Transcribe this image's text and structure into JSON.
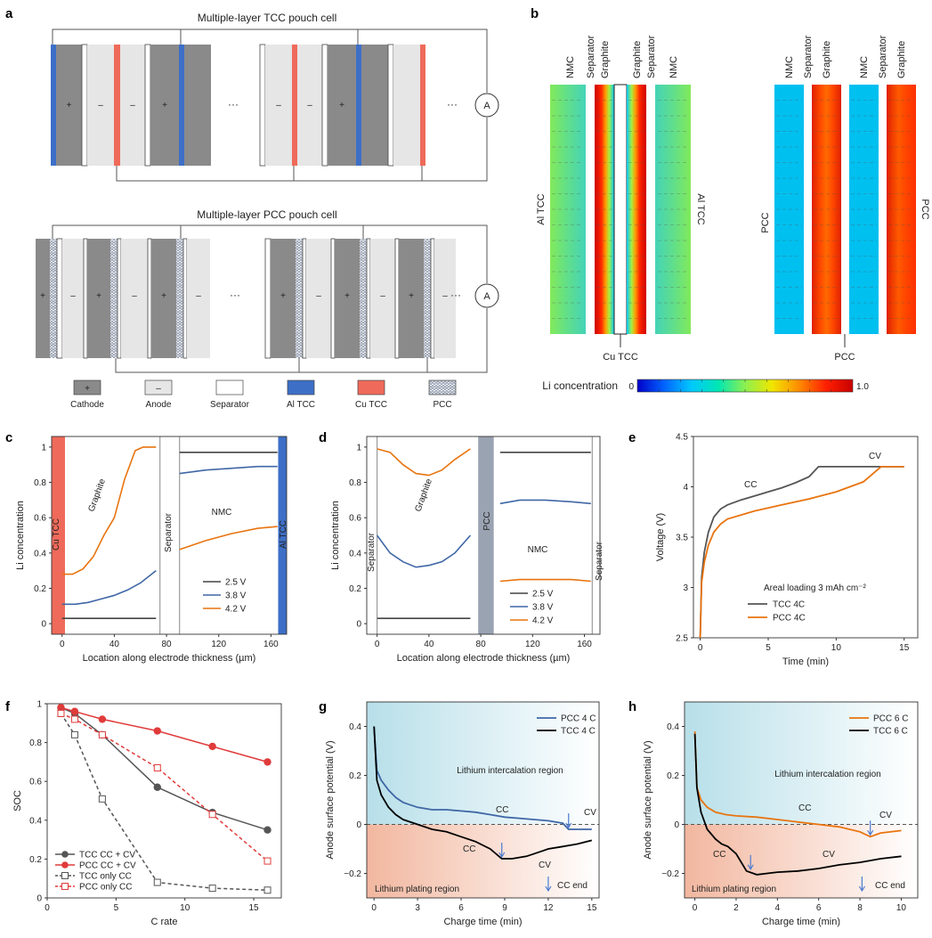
{
  "colors": {
    "cathode": "#8a8a8a",
    "anode": "#e6e6e6",
    "separator": "#ffffff",
    "al_tcc": "#3d6fc7",
    "cu_tcc": "#ef6a5a",
    "pcc_pattern": "#a9b2c4",
    "s25": "#444444",
    "s38": "#3f67a6",
    "s42": "#e8740f",
    "tcc_line": "#555555",
    "pcc_line": "#e8740f",
    "red": "#e03b3b",
    "pcc_bar": "#9aa3b2",
    "blue_g": "#3f67a6",
    "cmap": [
      "#0000c8",
      "#0064ff",
      "#00c8ff",
      "#00e6b4",
      "#8cf050",
      "#f0e600",
      "#ff8c00",
      "#ff2000",
      "#c80000"
    ]
  },
  "panel_labels": {
    "a": "a",
    "b": "b",
    "c": "c",
    "d": "d",
    "e": "e",
    "f": "f",
    "g": "g",
    "h": "h"
  },
  "panel_a": {
    "title_tcc": "Multiple-layer TCC pouch cell",
    "title_pcc": "Multiple-layer PCC pouch cell",
    "ammeter": "A",
    "ellipsis": "···",
    "plus": "+",
    "minus": "–",
    "legend": [
      {
        "key": "cathode",
        "label": "Cathode",
        "sym": "+"
      },
      {
        "key": "anode",
        "label": "Anode",
        "sym": "–"
      },
      {
        "key": "separator",
        "label": "Separator",
        "sym": ""
      },
      {
        "key": "al_tcc",
        "label": "Al TCC",
        "sym": ""
      },
      {
        "key": "cu_tcc",
        "label": "Cu TCC",
        "sym": ""
      },
      {
        "key": "pcc",
        "label": "PCC",
        "sym": ""
      }
    ]
  },
  "panel_b": {
    "tcc_layers": [
      "NMC",
      "Separator",
      "Graphite",
      "Graphite",
      "Separator",
      "NMC"
    ],
    "pcc_layers": [
      "NMC",
      "Separator",
      "Graphite",
      "NMC",
      "Separator",
      "Graphite"
    ],
    "al_tcc_left": "Al TCC",
    "al_tcc_right": "Al TCC",
    "cu_tcc": "Cu TCC",
    "pcc_left": "PCC",
    "pcc_right": "PCC",
    "pcc_bottom": "PCC",
    "colorbar_label": "Li concentration",
    "colorbar_min": "0",
    "colorbar_max": "1.0"
  },
  "chart_data": [
    {
      "id": "c",
      "type": "line",
      "xlabel": "Location along electrode thickness (µm)",
      "ylabel": "Li concentration",
      "xlim": [
        -8,
        172
      ],
      "ylim": [
        -0.06,
        1.06
      ],
      "xticks": [
        0,
        40,
        80,
        120,
        160
      ],
      "yticks": [
        0,
        0.2,
        0.4,
        0.6,
        0.8,
        1.0
      ],
      "region_labels": {
        "left_bar": "Cu TCC",
        "graphite": "Graphite",
        "separator": "Separator",
        "nmc": "NMC",
        "right_bar": "Al TCC"
      },
      "separator_range": [
        75,
        90
      ],
      "legend": [
        "2.5 V",
        "3.8 V",
        "4.2 V"
      ],
      "series": [
        {
          "name": "2.5 V",
          "color": "s25",
          "x": [
            0,
            72
          ],
          "y": [
            0.03,
            0.03
          ]
        },
        {
          "name": "2.5 V",
          "color": "s25",
          "x": [
            90,
            165
          ],
          "y": [
            0.97,
            0.97
          ]
        },
        {
          "name": "3.8 V",
          "color": "s38",
          "x": [
            0,
            10,
            20,
            30,
            40,
            50,
            60,
            72
          ],
          "y": [
            0.11,
            0.11,
            0.12,
            0.14,
            0.16,
            0.19,
            0.23,
            0.3
          ]
        },
        {
          "name": "3.8 V",
          "color": "s38",
          "x": [
            90,
            110,
            130,
            150,
            165
          ],
          "y": [
            0.85,
            0.87,
            0.88,
            0.89,
            0.89
          ]
        },
        {
          "name": "4.2 V",
          "color": "s42",
          "x": [
            0,
            8,
            16,
            24,
            32,
            40,
            48,
            56,
            62,
            68,
            72
          ],
          "y": [
            0.28,
            0.28,
            0.31,
            0.38,
            0.5,
            0.6,
            0.82,
            0.98,
            1.0,
            1.0,
            1.0
          ]
        },
        {
          "name": "4.2 V",
          "color": "s42",
          "x": [
            90,
            110,
            130,
            150,
            165
          ],
          "y": [
            0.42,
            0.47,
            0.51,
            0.54,
            0.55
          ]
        }
      ]
    },
    {
      "id": "d",
      "type": "line",
      "xlabel": "Location along electrode thickness (µm)",
      "ylabel": "Li concentration",
      "xlim": [
        -8,
        172
      ],
      "ylim": [
        -0.06,
        1.06
      ],
      "xticks": [
        0,
        40,
        80,
        120,
        160
      ],
      "yticks": [
        0,
        0.2,
        0.4,
        0.6,
        0.8,
        1.0
      ],
      "region_labels": {
        "left_sep": "Separator",
        "graphite": "Graphite",
        "pcc": "PCC",
        "nmc": "NMC",
        "right_sep": "Separator"
      },
      "pcc_range": [
        78,
        90
      ],
      "legend": [
        "2.5 V",
        "3.8 V",
        "4.2 V"
      ],
      "series": [
        {
          "name": "2.5 V",
          "color": "s25",
          "x": [
            0,
            72
          ],
          "y": [
            0.03,
            0.03
          ]
        },
        {
          "name": "2.5 V",
          "color": "s25",
          "x": [
            95,
            165
          ],
          "y": [
            0.97,
            0.97
          ]
        },
        {
          "name": "3.8 V",
          "color": "s38",
          "x": [
            0,
            10,
            20,
            30,
            40,
            50,
            60,
            72
          ],
          "y": [
            0.5,
            0.4,
            0.35,
            0.32,
            0.33,
            0.35,
            0.4,
            0.5
          ]
        },
        {
          "name": "3.8 V",
          "color": "s38",
          "x": [
            95,
            110,
            130,
            150,
            165
          ],
          "y": [
            0.68,
            0.7,
            0.7,
            0.69,
            0.68
          ]
        },
        {
          "name": "4.2 V",
          "color": "s42",
          "x": [
            0,
            10,
            20,
            30,
            40,
            50,
            60,
            72
          ],
          "y": [
            0.99,
            0.97,
            0.9,
            0.85,
            0.84,
            0.87,
            0.93,
            0.99
          ]
        },
        {
          "name": "4.2 V",
          "color": "s42",
          "x": [
            95,
            110,
            130,
            150,
            165
          ],
          "y": [
            0.24,
            0.25,
            0.25,
            0.25,
            0.24
          ]
        }
      ]
    },
    {
      "id": "e",
      "type": "line",
      "xlabel": "Time (min)",
      "ylabel": "Voltage (V)",
      "xlim": [
        -0.5,
        16
      ],
      "ylim": [
        2.5,
        4.5
      ],
      "xticks": [
        0,
        5,
        10,
        15
      ],
      "yticks": [
        2.5,
        3.0,
        3.5,
        4.0,
        4.5
      ],
      "annotations": {
        "cc": "CC",
        "cv": "CV",
        "note": "Areal loading 3 mAh cm⁻²"
      },
      "legend": [
        "TCC 4C",
        "PCC 4C"
      ],
      "series": [
        {
          "name": "TCC 4C",
          "color": "tcc_line",
          "x": [
            0,
            0.1,
            0.3,
            0.6,
            1,
            1.5,
            2,
            3,
            4,
            5,
            6,
            7,
            8,
            8.7,
            10,
            12,
            14,
            15
          ],
          "y": [
            2.5,
            3.1,
            3.35,
            3.55,
            3.7,
            3.78,
            3.82,
            3.87,
            3.91,
            3.95,
            3.99,
            4.04,
            4.1,
            4.2,
            4.2,
            4.2,
            4.2,
            4.2
          ]
        },
        {
          "name": "PCC 4C",
          "color": "pcc_line",
          "x": [
            0,
            0.1,
            0.3,
            0.6,
            1,
            1.5,
            2,
            3,
            4,
            6,
            8,
            10,
            12,
            13.3,
            14,
            15
          ],
          "y": [
            2.5,
            3.05,
            3.25,
            3.42,
            3.55,
            3.63,
            3.68,
            3.72,
            3.76,
            3.82,
            3.88,
            3.95,
            4.05,
            4.2,
            4.2,
            4.2
          ]
        }
      ]
    },
    {
      "id": "f",
      "type": "line",
      "xlabel": "C rate",
      "ylabel": "SOC",
      "xlim": [
        0,
        17
      ],
      "ylim": [
        0,
        1.0
      ],
      "xticks": [
        0,
        5,
        10,
        15
      ],
      "yticks": [
        0,
        0.2,
        0.4,
        0.6,
        0.8,
        1.0
      ],
      "legend": [
        "TCC CC + CV",
        "PCC CC + CV",
        "TCC only CC",
        "PCC only CC"
      ],
      "series": [
        {
          "name": "TCC CC + CV",
          "color": "tcc_line",
          "dash": false,
          "marker": "circle",
          "x": [
            1,
            2,
            4,
            8,
            12,
            16
          ],
          "y": [
            0.98,
            0.95,
            0.84,
            0.57,
            0.44,
            0.35
          ]
        },
        {
          "name": "PCC CC + CV",
          "color": "red",
          "dash": false,
          "marker": "circle",
          "x": [
            1,
            2,
            4,
            8,
            12,
            16
          ],
          "y": [
            0.98,
            0.96,
            0.92,
            0.86,
            0.78,
            0.7
          ]
        },
        {
          "name": "TCC only CC",
          "color": "tcc_line",
          "dash": true,
          "marker": "square",
          "x": [
            1,
            2,
            4,
            8,
            12,
            16
          ],
          "y": [
            0.95,
            0.84,
            0.51,
            0.08,
            0.05,
            0.04
          ]
        },
        {
          "name": "PCC only CC",
          "color": "red",
          "dash": true,
          "marker": "square",
          "x": [
            1,
            2,
            4,
            8,
            12,
            16
          ],
          "y": [
            0.95,
            0.92,
            0.84,
            0.67,
            0.43,
            0.19
          ]
        }
      ]
    },
    {
      "id": "g",
      "type": "line",
      "xlabel": "Charge time (min)",
      "ylabel": "Anode surface potential (V)",
      "xlim": [
        -0.5,
        15.5
      ],
      "ylim": [
        -0.3,
        0.5
      ],
      "xticks": [
        0,
        3,
        6,
        9,
        12,
        15
      ],
      "yticks": [
        -0.2,
        0,
        0.2,
        0.4
      ],
      "region_labels": {
        "upper": "Lithium intercalation region",
        "lower": "Lithium plating region"
      },
      "annotations": {
        "cc_blue": "CC",
        "cc_black": "CC",
        "cv_blue": "CV",
        "cv_black": "CV",
        "cc_end": "CC end"
      },
      "legend": [
        "PCC 4 C",
        "TCC 4 C"
      ],
      "series": [
        {
          "name": "PCC 4 C",
          "color": "blue_g",
          "x": [
            0,
            0.2,
            0.5,
            1,
            1.5,
            2,
            3,
            4,
            5,
            6,
            7,
            8,
            9,
            10,
            11,
            12,
            13,
            13.4,
            14,
            15
          ],
          "y": [
            0.4,
            0.22,
            0.18,
            0.14,
            0.11,
            0.09,
            0.07,
            0.06,
            0.06,
            0.055,
            0.05,
            0.04,
            0.03,
            0.025,
            0.02,
            0.015,
            0.005,
            -0.02,
            -0.02,
            -0.02
          ]
        },
        {
          "name": "TCC 4 C",
          "color": "black",
          "x": [
            0,
            0.2,
            0.5,
            1,
            1.5,
            2,
            3,
            4,
            5,
            6,
            7,
            8,
            8.8,
            9.5,
            10.5,
            11.5,
            12,
            13,
            14,
            15
          ],
          "y": [
            0.4,
            0.18,
            0.12,
            0.07,
            0.04,
            0.02,
            0.0,
            -0.02,
            -0.03,
            -0.05,
            -0.07,
            -0.1,
            -0.14,
            -0.14,
            -0.13,
            -0.11,
            -0.1,
            -0.09,
            -0.08,
            -0.065
          ]
        }
      ]
    },
    {
      "id": "h",
      "type": "line",
      "xlabel": "Charge time (min)",
      "ylabel": "Anode surface potential (V)",
      "xlim": [
        -0.5,
        10.8
      ],
      "ylim": [
        -0.3,
        0.5
      ],
      "xticks": [
        0,
        2,
        4,
        6,
        8,
        10
      ],
      "yticks": [
        -0.2,
        0,
        0.2,
        0.4
      ],
      "region_labels": {
        "upper": "Lithium intercalation region",
        "lower": "Lithium plating region"
      },
      "annotations": {
        "cc_orange": "CC",
        "cc_black": "CC",
        "cv_orange": "CV",
        "cv_black": "CV",
        "cc_end": "CC end"
      },
      "legend": [
        "PCC 6 C",
        "TCC 6 C"
      ],
      "series": [
        {
          "name": "PCC 6 C",
          "color": "s42",
          "x": [
            0,
            0.1,
            0.3,
            0.6,
            1,
            1.5,
            2,
            3,
            4,
            5,
            6,
            7,
            8,
            8.5,
            9,
            10
          ],
          "y": [
            0.38,
            0.15,
            0.1,
            0.07,
            0.05,
            0.04,
            0.035,
            0.03,
            0.02,
            0.01,
            0.0,
            -0.01,
            -0.03,
            -0.05,
            -0.035,
            -0.025
          ]
        },
        {
          "name": "TCC 6 C",
          "color": "black",
          "x": [
            0,
            0.1,
            0.3,
            0.6,
            1,
            1.3,
            1.6,
            2,
            2.5,
            3,
            3.5,
            4,
            5,
            6,
            7,
            8,
            9,
            10
          ],
          "y": [
            0.37,
            0.15,
            0.05,
            -0.02,
            -0.06,
            -0.08,
            -0.09,
            -0.12,
            -0.19,
            -0.205,
            -0.2,
            -0.195,
            -0.19,
            -0.18,
            -0.165,
            -0.155,
            -0.14,
            -0.13
          ]
        }
      ]
    }
  ]
}
